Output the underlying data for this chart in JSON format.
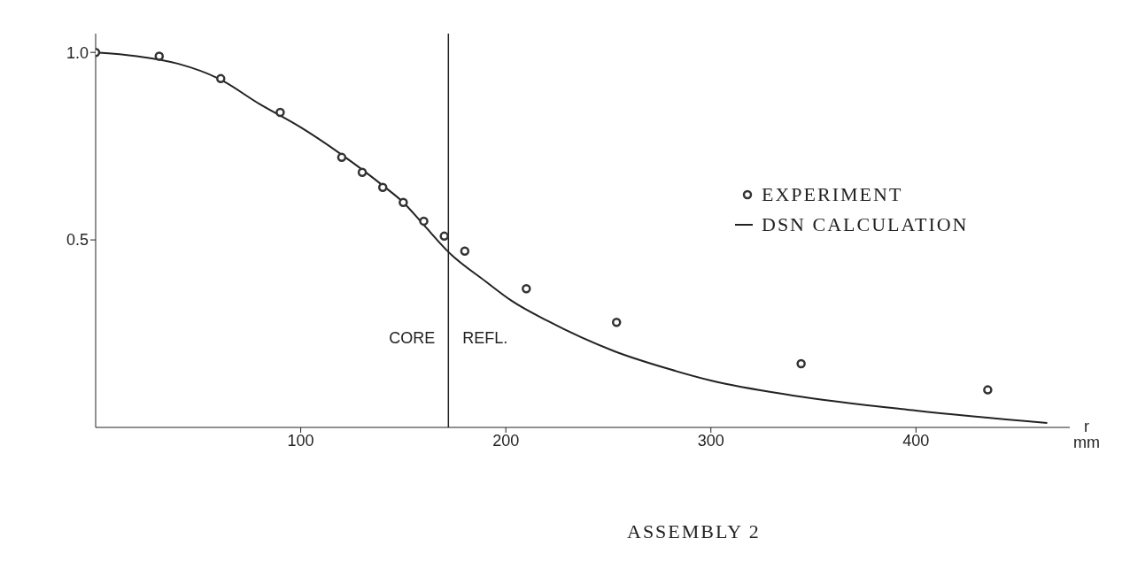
{
  "chart_data": {
    "type": "scatter",
    "title": "ASSEMBLY 2",
    "xlabel": "r mm",
    "series": [
      {
        "name": "EXPERIMENT",
        "color": "#333333",
        "marker": "circle",
        "x": [
          0,
          31,
          61,
          90,
          120,
          130,
          140,
          150,
          160,
          170,
          180,
          210,
          254,
          344,
          435
        ],
        "values": [
          1.0,
          0.99,
          0.93,
          0.84,
          0.72,
          0.68,
          0.64,
          0.6,
          0.55,
          0.51,
          0.47,
          0.37,
          0.28,
          0.17,
          0.1
        ]
      },
      {
        "name": "DSN CALCULATION",
        "type": "line",
        "color": "#222222",
        "line_style": "solid",
        "x": [
          0,
          20,
          40,
          60,
          80,
          100,
          120,
          140,
          150,
          160,
          172,
          190,
          203,
          220,
          253,
          280,
          300,
          340,
          400,
          464
        ],
        "values": [
          1.0,
          0.99,
          0.97,
          0.93,
          0.862,
          0.8,
          0.727,
          0.645,
          0.6,
          0.54,
          0.468,
          0.39,
          0.337,
          0.285,
          0.203,
          0.155,
          0.125,
          0.085,
          0.045,
          0.012
        ]
      }
    ],
    "xlim": [
      0,
      475
    ],
    "xticks": [
      100,
      200,
      300,
      400
    ],
    "ylim": [
      0,
      1.05
    ],
    "yticks": [
      0.5,
      {
        "value": 1,
        "label": "1.0"
      }
    ],
    "ref_lines": [
      {
        "axis": "x",
        "value": 172,
        "color": "#222222"
      }
    ],
    "annotations": [
      "CORE",
      "REFL."
    ],
    "legend": "right",
    "grid": false
  }
}
